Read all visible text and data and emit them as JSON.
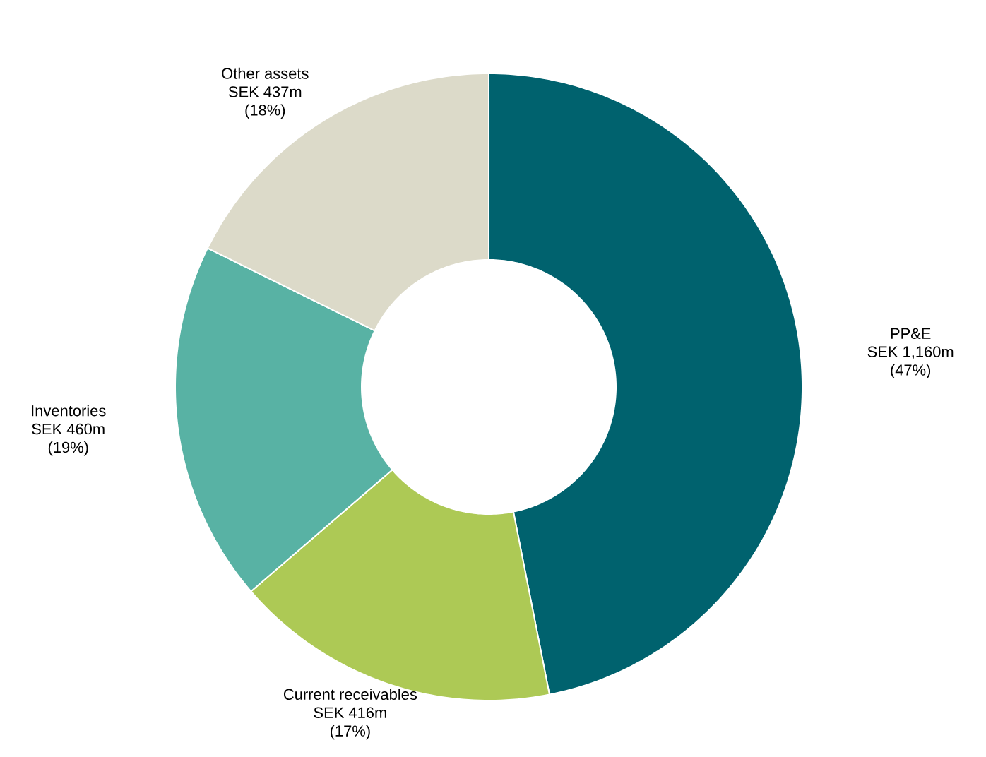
{
  "chart_data": {
    "type": "donut",
    "categories": [
      "PP&E",
      "Current receivables",
      "Inventories",
      "Other assets"
    ],
    "values": [
      46.9,
      16.8,
      18.6,
      17.7
    ],
    "colors": [
      "#00626e",
      "#adc955",
      "#58b2a4",
      "#dcdac9"
    ],
    "value_labels": [
      "SEK 1,160m",
      "SEK 416m",
      "SEK 460m",
      "SEK 437m"
    ],
    "annotations": [
      {
        "text": "(47%)",
        "x": "PP&E"
      },
      {
        "text": "(17%)",
        "x": "Current receivables"
      },
      {
        "text": "(19%)",
        "x": "Inventories"
      },
      {
        "text": "(18%)",
        "x": "Other assets"
      }
    ]
  }
}
